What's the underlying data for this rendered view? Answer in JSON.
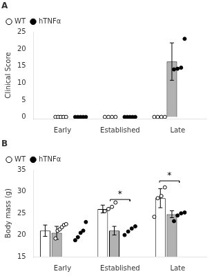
{
  "chart_data": [
    {
      "type": "bar",
      "title": "A",
      "ylabel": "Clinical Score",
      "categories": [
        "Early",
        "Established",
        "Late"
      ],
      "series": [
        {
          "name": "WT",
          "marker": "open circle",
          "dots": [
            [
              0,
              0,
              0,
              0,
              0
            ],
            [
              0,
              0,
              0,
              0
            ],
            [
              0,
              0,
              0,
              0
            ]
          ]
        },
        {
          "name": "hTNFα",
          "color": "#b2b2b2",
          "marker": "filled circle",
          "values": [
            null,
            null,
            16.3
          ],
          "errors": [
            null,
            null,
            5.5
          ],
          "dots": [
            [
              0,
              0,
              0,
              0,
              0
            ],
            [
              0,
              0,
              0,
              0,
              0
            ],
            [
              14.0,
              14.2,
              14.5,
              23.0
            ]
          ]
        }
      ],
      "ylim": [
        -0.5,
        25
      ],
      "yticks": [
        0,
        5,
        10,
        15,
        20,
        25
      ],
      "grid": false,
      "legend": "upper left"
    },
    {
      "type": "bar",
      "title": "B",
      "ylabel": "Body mass (g)",
      "categories": [
        "Early",
        "Established",
        "Late"
      ],
      "series": [
        {
          "name": "WT",
          "color": "#ffffff",
          "marker": "open circle",
          "values": [
            21.0,
            26.0,
            28.5
          ],
          "errors": [
            1.3,
            0.9,
            2.2
          ],
          "dots": [
            [
              19.2,
              21.0,
              21.3,
              21.8,
              22.3,
              22.5
            ],
            [
              25.5,
              26.0,
              26.5,
              27.5
            ],
            [
              24.2,
              28.5,
              29.0,
              31.0
            ]
          ]
        },
        {
          "name": "hTNFα",
          "color": "#b2b2b2",
          "marker": "filled circle",
          "values": [
            20.5,
            21.0,
            24.8
          ],
          "errors": [
            1.5,
            1.0,
            0.8
          ],
          "dots": [
            [
              18.8,
              19.5,
              20.5,
              21.0,
              23.0
            ],
            [
              20.0,
              20.8,
              21.5,
              22.0
            ],
            [
              23.2,
              24.5,
              25.0,
              25.2
            ]
          ]
        }
      ],
      "annotations": [
        {
          "category": "Established",
          "y": 28.2,
          "text": "*"
        },
        {
          "category": "Late",
          "y": 32.5,
          "text": "*"
        }
      ],
      "ylim": [
        15,
        35
      ],
      "yticks": [
        15,
        20,
        25,
        30,
        35
      ],
      "grid": false,
      "legend": "upper left"
    }
  ]
}
